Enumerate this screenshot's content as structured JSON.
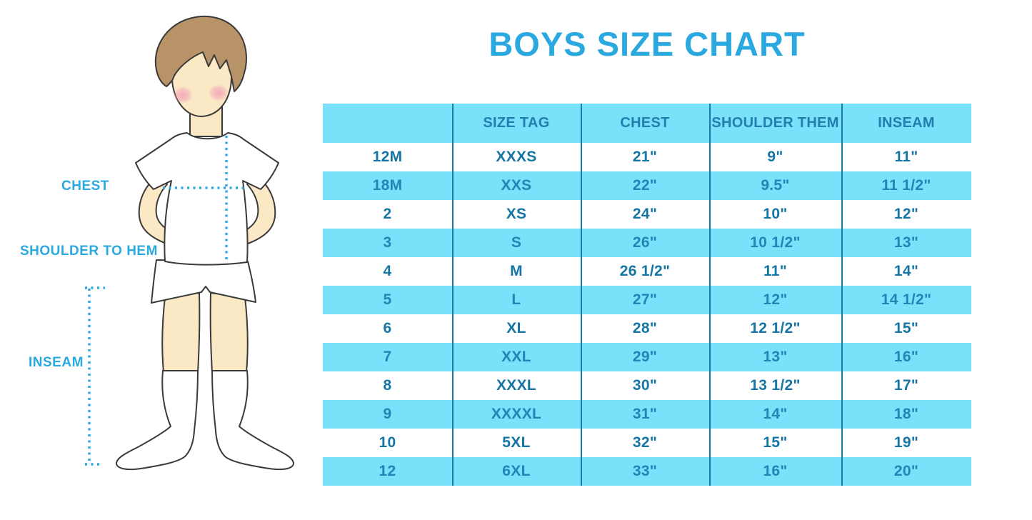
{
  "title": "BOYS SIZE CHART",
  "figure": {
    "labels": {
      "chest": "CHEST",
      "shoulder_to_hem": "SHOULDER TO HEM",
      "inseam": "INSEAM"
    }
  },
  "table": {
    "columns": [
      "",
      "SIZE TAG",
      "CHEST",
      "SHOULDER THEM",
      "INSEAM"
    ],
    "rows": [
      [
        "12M",
        "XXXS",
        "21\"",
        "9\"",
        "11\""
      ],
      [
        "18M",
        "XXS",
        "22\"",
        "9.5\"",
        "11 1/2\""
      ],
      [
        "2",
        "XS",
        "24\"",
        "10\"",
        "12\""
      ],
      [
        "3",
        "S",
        "26\"",
        "10 1/2\"",
        "13\""
      ],
      [
        "4",
        "M",
        "26 1/2\"",
        "11\"",
        "14\""
      ],
      [
        "5",
        "L",
        "27\"",
        "12\"",
        "14 1/2\""
      ],
      [
        "6",
        "XL",
        "28\"",
        "12 1/2\"",
        "15\""
      ],
      [
        "7",
        "XXL",
        "29\"",
        "13\"",
        "16\""
      ],
      [
        "8",
        "XXXL",
        "30\"",
        "13 1/2\"",
        "17\""
      ],
      [
        "9",
        "XXXXL",
        "31\"",
        "14\"",
        "18\""
      ],
      [
        "10",
        "5XL",
        "32\"",
        "15\"",
        "19\""
      ],
      [
        "12",
        "6XL",
        "33\"",
        "16\"",
        "20\""
      ]
    ]
  },
  "colors": {
    "accent_blue": "#29A9E0",
    "stripe_blue": "#7BE0FA",
    "table_text_blue": "#1576A6",
    "table_text_on_stripe": "#1F86B5",
    "header_text": "#1F7FAD",
    "divider": "#1878A8",
    "dotted_line": "#2AAAE2",
    "skin": "#FBE8C5",
    "hair": "#B79367"
  }
}
